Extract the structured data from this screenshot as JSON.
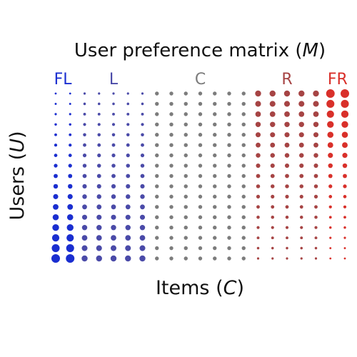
{
  "figure": {
    "title": {
      "text": "User preference matrix (",
      "symbol": "M",
      "close": ")"
    },
    "xlabel": {
      "text": "Items (",
      "symbol": "C",
      "close": ")"
    },
    "ylabel": {
      "text": "Users (",
      "symbol": "U",
      "close": ")"
    }
  },
  "groups": [
    {
      "label": "FL",
      "color": "#1a2ed0",
      "columns": 2
    },
    {
      "label": "L",
      "color": "#4a4aa8",
      "columns": 5
    },
    {
      "label": "C",
      "color": "#7c7c7c",
      "columns": 7
    },
    {
      "label": "R",
      "color": "#a64444",
      "columns": 5
    },
    {
      "label": "FR",
      "color": "#d9302a",
      "columns": 2
    }
  ],
  "matrix": {
    "rows": 17,
    "columns": 21,
    "dot_size_trend": {
      "FL": "increasing toward bottom (strong)",
      "L": "increasing toward bottom (moderate)",
      "C": "uniform",
      "R": "increasing toward top (moderate)",
      "FR": "increasing toward top (strong)"
    }
  }
}
